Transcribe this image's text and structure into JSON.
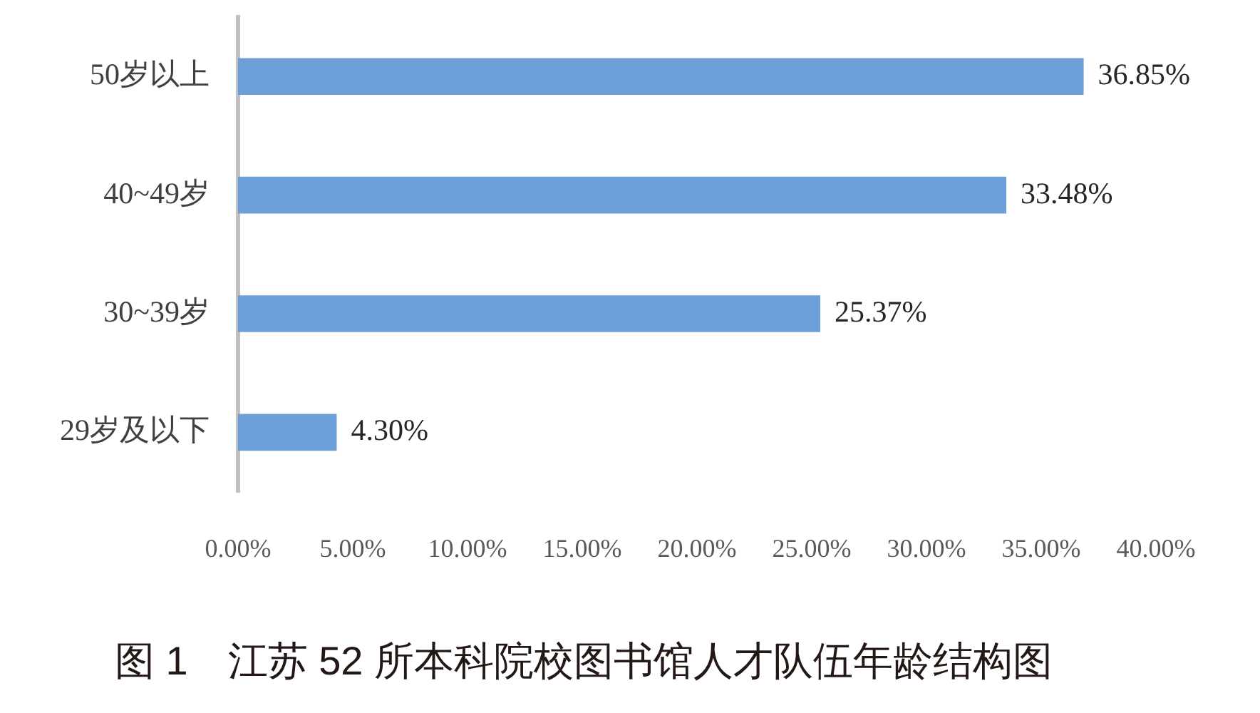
{
  "chart_data": {
    "type": "bar",
    "orientation": "horizontal",
    "title": "图 1　江苏 52 所本科院校图书馆人才队伍年龄结构图",
    "categories": [
      "50岁以上",
      "40~49岁",
      "30~39岁",
      "29岁及以下"
    ],
    "values": [
      36.85,
      33.48,
      25.37,
      4.3
    ],
    "value_labels": [
      "36.85%",
      "33.48%",
      "25.37%",
      "4.30%"
    ],
    "color": "#6c9fd7",
    "xlim": [
      0,
      40
    ],
    "xticks": [
      {
        "value": 0,
        "label": "0.00%"
      },
      {
        "value": 5,
        "label": "5.00%"
      },
      {
        "value": 10,
        "label": "10.00%"
      },
      {
        "value": 15,
        "label": "15.00%"
      },
      {
        "value": 20,
        "label": "20.00%"
      },
      {
        "value": 25,
        "label": "25.00%"
      },
      {
        "value": 30,
        "label": "30.00%"
      },
      {
        "value": 35,
        "label": "35.00%"
      },
      {
        "value": 40,
        "label": "40.00%"
      }
    ]
  }
}
